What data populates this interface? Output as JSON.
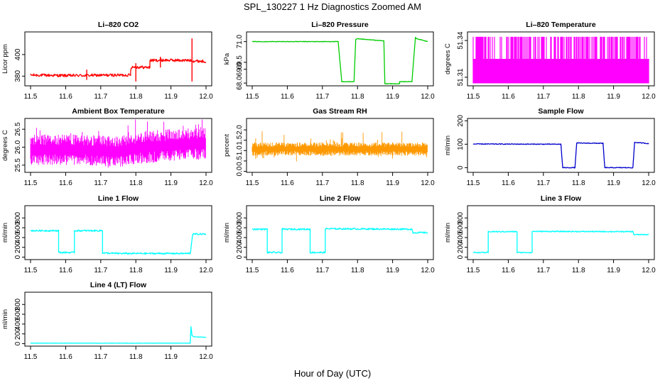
{
  "figure": {
    "title": "SPL_130227  1 Hz Diagnostics Zoomed AM",
    "xlabel": "Hour of Day (UTC)"
  },
  "chart_data": [
    {
      "type": "line",
      "title": "Li–820 CO2",
      "ylabel": "Licor ppm",
      "color": "#ff0000",
      "xlim": [
        11.5,
        12.0
      ],
      "ylim": [
        371,
        421
      ],
      "x_ticks": [
        11.5,
        11.6,
        11.7,
        11.8,
        11.9,
        12.0
      ],
      "y_ticks": [
        380,
        400
      ],
      "y_tick_labels": [
        "380",
        "400"
      ],
      "series": [
        {
          "style": "noisy",
          "noise": 1.3,
          "points": [
            [
              11.5,
              381
            ],
            [
              11.6,
              380.5
            ],
            [
              11.7,
              380.8
            ],
            [
              11.785,
              381
            ],
            [
              11.785,
              385
            ],
            [
              11.788,
              388.5
            ],
            [
              11.84,
              388
            ],
            [
              11.84,
              394.5
            ],
            [
              11.88,
              394.8
            ],
            [
              11.96,
              394.5
            ],
            [
              11.965,
              394
            ],
            [
              12.0,
              393.8
            ]
          ]
        }
      ]
    },
    {
      "type": "line",
      "title": "Li–820 Pressure",
      "ylabel": "kPa",
      "color": "#00cc00",
      "xlim": [
        11.5,
        12.0
      ],
      "ylim": [
        67.8,
        71.7
      ],
      "x_ticks": [
        11.5,
        11.6,
        11.7,
        11.8,
        11.9,
        12.0
      ],
      "y_ticks": [
        68.0,
        69.0,
        69.5,
        71.0
      ],
      "y_tick_labels": [
        "68.0",
        "69.0",
        "69.5",
        "71.0"
      ],
      "series": [
        {
          "style": "noisy",
          "noise": 0.02,
          "points": [
            [
              11.5,
              71.0
            ],
            [
              11.745,
              71.0
            ],
            [
              11.755,
              68.1
            ],
            [
              11.79,
              68.1
            ],
            [
              11.795,
              71.15
            ],
            [
              11.8,
              71.2
            ],
            [
              11.875,
              71.05
            ],
            [
              11.878,
              67.95
            ],
            [
              11.92,
              67.95
            ],
            [
              11.92,
              68.1
            ],
            [
              11.955,
              68.1
            ],
            [
              11.965,
              71.3
            ],
            [
              11.97,
              71.2
            ],
            [
              12.0,
              71.0
            ]
          ]
        }
      ]
    },
    {
      "type": "line",
      "title": "Li–820 Temperature",
      "ylabel": "degrees C",
      "color": "#ff00ff",
      "xlim": [
        11.5,
        12.0
      ],
      "ylim": [
        51.303,
        51.347
      ],
      "x_ticks": [
        11.5,
        11.6,
        11.7,
        11.8,
        11.9,
        12.0
      ],
      "y_ticks": [
        51.31,
        51.34
      ],
      "y_tick_labels": [
        "51.31",
        "51.34"
      ],
      "series": [
        {
          "style": "binary",
          "low": 51.305,
          "high": 51.343,
          "mid_lo": 51.305,
          "mid_hi": 51.325
        }
      ]
    },
    {
      "type": "line",
      "title": "Ambient Box Temperature",
      "ylabel": "degrees C",
      "color": "#ff00ff",
      "xlim": [
        11.5,
        12.0
      ],
      "ylim": [
        25.3,
        26.8
      ],
      "x_ticks": [
        11.5,
        11.6,
        11.7,
        11.8,
        11.9,
        12.0
      ],
      "y_ticks": [
        25.5,
        26.0,
        26.5
      ],
      "y_tick_labels": [
        "25.5",
        "26.0",
        "26.5"
      ],
      "series": [
        {
          "style": "band",
          "points": [
            [
              11.5,
              25.5,
              26.35
            ],
            [
              11.65,
              25.5,
              26.35
            ],
            [
              11.75,
              25.45,
              26.3
            ],
            [
              11.82,
              25.55,
              26.45
            ],
            [
              11.9,
              25.6,
              26.5
            ],
            [
              11.98,
              25.65,
              26.55
            ],
            [
              12.0,
              25.65,
              26.55
            ]
          ]
        }
      ]
    },
    {
      "type": "line",
      "title": "Gas Stream RH",
      "ylabel": "percent",
      "color": "#ff9900",
      "xlim": [
        11.5,
        12.0
      ],
      "ylim": [
        -0.05,
        2.55
      ],
      "x_ticks": [
        11.5,
        11.6,
        11.7,
        11.8,
        11.9,
        12.0
      ],
      "y_ticks": [
        0.0,
        0.5,
        1.0,
        1.5,
        2.0
      ],
      "y_tick_labels": [
        "0.0",
        "0.5",
        "1.0",
        "1.5",
        "2.0"
      ],
      "series": [
        {
          "style": "band",
          "points": [
            [
              11.5,
              0.75,
              1.4
            ],
            [
              12.0,
              0.75,
              1.4
            ]
          ]
        }
      ]
    },
    {
      "type": "line",
      "title": "Sample Flow",
      "ylabel": "ml/min",
      "color": "#0000cc",
      "xlim": [
        11.5,
        12.0
      ],
      "ylim": [
        -20,
        210
      ],
      "x_ticks": [
        11.5,
        11.6,
        11.7,
        11.8,
        11.9,
        12.0
      ],
      "y_ticks": [
        0,
        100,
        200
      ],
      "y_tick_labels": [
        "0",
        "100",
        "200"
      ],
      "series": [
        {
          "style": "noisy",
          "noise": 1.5,
          "points": [
            [
              11.5,
              101
            ],
            [
              11.75,
              100
            ],
            [
              11.755,
              0
            ],
            [
              11.79,
              0
            ],
            [
              11.795,
              105
            ],
            [
              11.87,
              104
            ],
            [
              11.875,
              0
            ],
            [
              11.955,
              0
            ],
            [
              11.96,
              108
            ],
            [
              12.0,
              103
            ]
          ]
        }
      ]
    },
    {
      "type": "line",
      "title": "Line 1 Flow",
      "ylabel": "ml/min",
      "color": "#00ffff",
      "xlim": [
        11.5,
        12.0
      ],
      "ylim": [
        -50,
        1050
      ],
      "x_ticks": [
        11.5,
        11.6,
        11.7,
        11.8,
        11.9,
        12.0
      ],
      "y_ticks": [
        0,
        200,
        400,
        600,
        800
      ],
      "y_tick_labels": [
        "0",
        "200",
        "400",
        "600",
        "800"
      ],
      "series": [
        {
          "style": "noisy",
          "noise": 15,
          "points": [
            [
              11.5,
              540
            ],
            [
              11.58,
              540
            ],
            [
              11.58,
              95
            ],
            [
              11.625,
              95
            ],
            [
              11.625,
              540
            ],
            [
              11.705,
              540
            ],
            [
              11.705,
              85
            ],
            [
              11.75,
              75
            ],
            [
              11.955,
              75
            ],
            [
              11.962,
              470
            ],
            [
              12.0,
              470
            ]
          ]
        }
      ]
    },
    {
      "type": "line",
      "title": "Line 2 Flow",
      "ylabel": "ml/min",
      "color": "#00ffff",
      "xlim": [
        11.5,
        12.0
      ],
      "ylim": [
        -50,
        1050
      ],
      "x_ticks": [
        11.5,
        11.6,
        11.7,
        11.8,
        11.9,
        12.0
      ],
      "y_ticks": [
        0,
        200,
        400,
        600,
        800
      ],
      "y_tick_labels": [
        "0",
        "200",
        "400",
        "600",
        "800"
      ],
      "series": [
        {
          "style": "noisy",
          "noise": 15,
          "points": [
            [
              11.5,
              570
            ],
            [
              11.543,
              570
            ],
            [
              11.543,
              95
            ],
            [
              11.585,
              95
            ],
            [
              11.585,
              570
            ],
            [
              11.665,
              570
            ],
            [
              11.665,
              95
            ],
            [
              11.708,
              95
            ],
            [
              11.708,
              580
            ],
            [
              11.955,
              570
            ],
            [
              11.958,
              500
            ],
            [
              12.0,
              500
            ]
          ]
        }
      ]
    },
    {
      "type": "line",
      "title": "Line 3 Flow",
      "ylabel": "ml/min",
      "color": "#00ffff",
      "xlim": [
        11.5,
        12.0
      ],
      "ylim": [
        -50,
        1050
      ],
      "x_ticks": [
        11.5,
        11.6,
        11.7,
        11.8,
        11.9,
        12.0
      ],
      "y_ticks": [
        0,
        200,
        400,
        600,
        800
      ],
      "y_tick_labels": [
        "0",
        "200",
        "400",
        "600",
        "800"
      ],
      "series": [
        {
          "style": "noisy",
          "noise": 10,
          "points": [
            [
              11.5,
              95
            ],
            [
              11.543,
              95
            ],
            [
              11.543,
              520
            ],
            [
              11.625,
              520
            ],
            [
              11.625,
              95
            ],
            [
              11.668,
              95
            ],
            [
              11.668,
              525
            ],
            [
              11.955,
              520
            ],
            [
              11.958,
              460
            ],
            [
              12.0,
              460
            ]
          ]
        }
      ]
    },
    {
      "type": "line",
      "title": "Line 4 (LT) Flow",
      "ylabel": "ml/min",
      "color": "#00ffff",
      "xlim": [
        11.5,
        12.0
      ],
      "ylim": [
        -50,
        1050
      ],
      "x_ticks": [
        11.5,
        11.6,
        11.7,
        11.8,
        11.9,
        12.0
      ],
      "y_ticks": [
        0,
        200,
        400,
        600,
        800
      ],
      "y_tick_labels": [
        "0",
        "200",
        "400",
        "600",
        "800"
      ],
      "series": [
        {
          "style": "noisy",
          "noise": 3,
          "points": [
            [
              11.5,
              10
            ],
            [
              11.955,
              10
            ],
            [
              11.957,
              350
            ],
            [
              11.96,
              170
            ],
            [
              11.965,
              140
            ],
            [
              12.0,
              130
            ]
          ]
        }
      ]
    }
  ]
}
